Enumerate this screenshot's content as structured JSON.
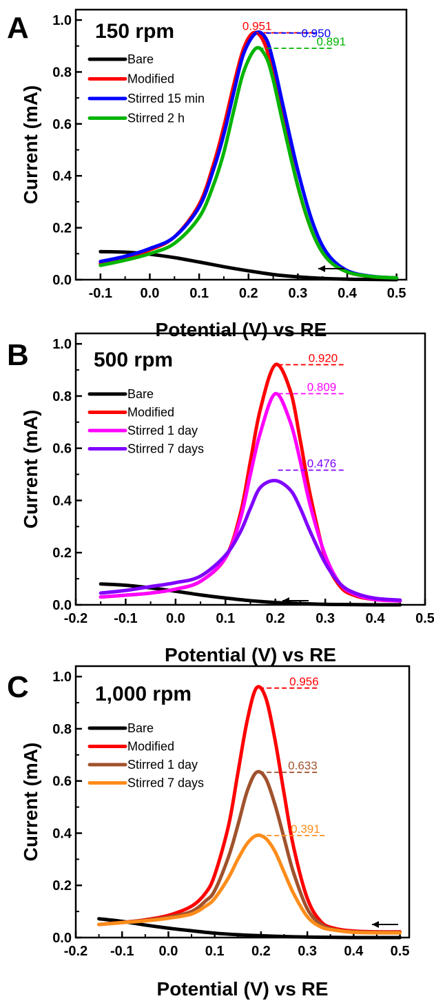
{
  "chart_data": [
    {
      "type": "line",
      "panel_label": "A",
      "title": "150 rpm",
      "xlabel": "Potential (V) vs RE",
      "ylabel": "Current (mA)",
      "xlim": [
        -0.15,
        0.52
      ],
      "ylim": [
        0,
        1.04
      ],
      "xticks": [
        -0.1,
        0.0,
        0.1,
        0.2,
        0.3,
        0.4,
        0.5
      ],
      "xtick_labels": [
        "-0.1",
        "0.0",
        "0.1",
        "0.2",
        "0.3",
        "0.4",
        "0.5"
      ],
      "yticks": [
        0.0,
        0.2,
        0.4,
        0.6,
        0.8,
        1.0
      ],
      "ytick_labels": [
        "0.0",
        "0.2",
        "0.4",
        "0.6",
        "0.8",
        "1.0"
      ],
      "grid": false,
      "legend_position": "top-left",
      "scan_arrow": "leftward",
      "series": [
        {
          "name": "Bare",
          "color": "#000000",
          "x": [
            -0.1,
            -0.05,
            0.0,
            0.05,
            0.1,
            0.15,
            0.2,
            0.25,
            0.3,
            0.35,
            0.4,
            0.45,
            0.5
          ],
          "y": [
            0.108,
            0.106,
            0.098,
            0.085,
            0.068,
            0.05,
            0.034,
            0.02,
            0.011,
            0.005,
            0.002,
            0.001,
            0.0
          ]
        },
        {
          "name": "Modified",
          "color": "#ff0000",
          "x": [
            -0.1,
            -0.05,
            0.0,
            0.05,
            0.1,
            0.13,
            0.15,
            0.17,
            0.19,
            0.21,
            0.23,
            0.25,
            0.27,
            0.3,
            0.33,
            0.36,
            0.4,
            0.45,
            0.5
          ],
          "y": [
            0.062,
            0.085,
            0.115,
            0.165,
            0.29,
            0.45,
            0.59,
            0.75,
            0.89,
            0.951,
            0.92,
            0.8,
            0.62,
            0.36,
            0.18,
            0.08,
            0.03,
            0.012,
            0.007
          ]
        },
        {
          "name": "Stirred 15 min",
          "color": "#0000ff",
          "x": [
            -0.1,
            -0.05,
            0.0,
            0.05,
            0.1,
            0.13,
            0.15,
            0.17,
            0.19,
            0.215,
            0.235,
            0.25,
            0.27,
            0.3,
            0.33,
            0.36,
            0.4,
            0.45,
            0.5
          ],
          "y": [
            0.07,
            0.09,
            0.12,
            0.165,
            0.28,
            0.43,
            0.56,
            0.72,
            0.87,
            0.95,
            0.93,
            0.84,
            0.67,
            0.42,
            0.22,
            0.1,
            0.035,
            0.013,
            0.007
          ]
        },
        {
          "name": "Stirred 2 h",
          "color": "#00b400",
          "x": [
            -0.1,
            -0.05,
            0.0,
            0.05,
            0.1,
            0.13,
            0.15,
            0.17,
            0.19,
            0.215,
            0.235,
            0.25,
            0.27,
            0.3,
            0.33,
            0.36,
            0.4,
            0.45,
            0.5
          ],
          "y": [
            0.055,
            0.075,
            0.1,
            0.14,
            0.24,
            0.37,
            0.49,
            0.65,
            0.8,
            0.891,
            0.86,
            0.77,
            0.6,
            0.36,
            0.18,
            0.08,
            0.03,
            0.012,
            0.007
          ]
        }
      ],
      "annotations": [
        {
          "text": "0.951",
          "color": "#ff0000",
          "x": 0.21,
          "y": 0.951
        },
        {
          "text": "0.950",
          "color": "#0000ff",
          "x": 0.215,
          "y": 0.95
        },
        {
          "text": "0.891",
          "color": "#00b400",
          "x": 0.215,
          "y": 0.891
        }
      ]
    },
    {
      "type": "line",
      "panel_label": "B",
      "title": "500 rpm",
      "xlabel": "Potential (V) vs RE",
      "ylabel": "Current (mA)",
      "xlim": [
        -0.2,
        0.5
      ],
      "ylim": [
        0,
        1.04
      ],
      "xticks": [
        -0.2,
        -0.1,
        0.0,
        0.1,
        0.2,
        0.3,
        0.4,
        0.5
      ],
      "xtick_labels": [
        "-0.2",
        "-0.1",
        "0.0",
        "0.1",
        "0.2",
        "0.3",
        "0.4",
        "0.5"
      ],
      "yticks": [
        0.0,
        0.2,
        0.4,
        0.6,
        0.8,
        1.0
      ],
      "ytick_labels": [
        "0.0",
        "0.2",
        "0.4",
        "0.6",
        "0.8",
        "1.0"
      ],
      "grid": false,
      "legend_position": "top-left",
      "scan_arrow": "leftward",
      "series": [
        {
          "name": "Bare",
          "color": "#000000",
          "x": [
            -0.15,
            -0.1,
            -0.05,
            0.0,
            0.05,
            0.1,
            0.15,
            0.2,
            0.25,
            0.3,
            0.35,
            0.4,
            0.45
          ],
          "y": [
            0.08,
            0.075,
            0.065,
            0.052,
            0.038,
            0.026,
            0.016,
            0.009,
            0.005,
            0.002,
            0.001,
            0.0,
            0.0
          ]
        },
        {
          "name": "Modified",
          "color": "#ff0000",
          "x": [
            -0.15,
            -0.1,
            -0.05,
            0.0,
            0.05,
            0.1,
            0.13,
            0.15,
            0.17,
            0.2,
            0.23,
            0.25,
            0.27,
            0.3,
            0.33,
            0.36,
            0.4,
            0.45
          ],
          "y": [
            0.03,
            0.037,
            0.045,
            0.06,
            0.09,
            0.18,
            0.35,
            0.55,
            0.75,
            0.92,
            0.82,
            0.63,
            0.42,
            0.18,
            0.07,
            0.035,
            0.02,
            0.015
          ]
        },
        {
          "name": "Stirred 1 day",
          "color": "#ff00ff",
          "x": [
            -0.15,
            -0.1,
            -0.05,
            0.0,
            0.05,
            0.1,
            0.13,
            0.15,
            0.17,
            0.2,
            0.23,
            0.25,
            0.27,
            0.3,
            0.33,
            0.36,
            0.4,
            0.45
          ],
          "y": [
            0.03,
            0.037,
            0.045,
            0.06,
            0.09,
            0.18,
            0.33,
            0.5,
            0.66,
            0.809,
            0.7,
            0.55,
            0.38,
            0.19,
            0.08,
            0.04,
            0.02,
            0.015
          ]
        },
        {
          "name": "Stirred 7 days",
          "color": "#8000ff",
          "x": [
            -0.15,
            -0.1,
            -0.05,
            0.0,
            0.05,
            0.1,
            0.13,
            0.15,
            0.17,
            0.2,
            0.23,
            0.25,
            0.27,
            0.3,
            0.33,
            0.36,
            0.4,
            0.45
          ],
          "y": [
            0.045,
            0.055,
            0.07,
            0.085,
            0.11,
            0.19,
            0.28,
            0.37,
            0.45,
            0.476,
            0.44,
            0.37,
            0.28,
            0.16,
            0.08,
            0.045,
            0.025,
            0.018
          ]
        }
      ],
      "annotations": [
        {
          "text": "0.920",
          "color": "#ff0000",
          "x": 0.2,
          "y": 0.92
        },
        {
          "text": "0.809",
          "color": "#ff00ff",
          "x": 0.2,
          "y": 0.809
        },
        {
          "text": "0.476",
          "color": "#8000ff",
          "x": 0.2,
          "y": 0.516
        }
      ]
    },
    {
      "type": "line",
      "panel_label": "C",
      "title": "1,000 rpm",
      "xlabel": "Potential (V) vs RE",
      "ylabel": "Current (mA)",
      "xlim": [
        -0.2,
        0.52
      ],
      "ylim": [
        0,
        1.04
      ],
      "xticks": [
        -0.2,
        -0.1,
        0.0,
        0.1,
        0.2,
        0.3,
        0.4,
        0.5
      ],
      "xtick_labels": [
        "-0.2",
        "-0.1",
        "0.0",
        "0.1",
        "0.2",
        "0.3",
        "0.4",
        "0.5"
      ],
      "yticks": [
        0.0,
        0.2,
        0.4,
        0.6,
        0.8,
        1.0
      ],
      "ytick_labels": [
        "0.0",
        "0.2",
        "0.4",
        "0.6",
        "0.8",
        "1.0"
      ],
      "grid": false,
      "legend_position": "top-left",
      "scan_arrow": "leftward",
      "series": [
        {
          "name": "Bare",
          "color": "#000000",
          "x": [
            -0.15,
            -0.1,
            -0.05,
            0.0,
            0.05,
            0.1,
            0.15,
            0.2,
            0.25,
            0.3,
            0.35,
            0.4,
            0.45,
            0.5
          ],
          "y": [
            0.072,
            0.062,
            0.048,
            0.036,
            0.026,
            0.017,
            0.011,
            0.007,
            0.004,
            0.002,
            0.001,
            0.0,
            0.0,
            0.0
          ]
        },
        {
          "name": "Modified",
          "color": "#ff0000",
          "x": [
            -0.15,
            -0.1,
            -0.05,
            0.0,
            0.05,
            0.08,
            0.1,
            0.13,
            0.15,
            0.17,
            0.19,
            0.21,
            0.23,
            0.25,
            0.27,
            0.3,
            0.33,
            0.36,
            0.4,
            0.45,
            0.5
          ],
          "y": [
            0.05,
            0.058,
            0.068,
            0.085,
            0.12,
            0.17,
            0.24,
            0.43,
            0.63,
            0.83,
            0.956,
            0.92,
            0.76,
            0.55,
            0.35,
            0.15,
            0.06,
            0.035,
            0.025,
            0.022,
            0.022
          ]
        },
        {
          "name": "Stirred 1 day",
          "color": "#a0522d",
          "x": [
            -0.15,
            -0.1,
            -0.05,
            0.0,
            0.05,
            0.08,
            0.1,
            0.13,
            0.15,
            0.17,
            0.19,
            0.21,
            0.23,
            0.25,
            0.27,
            0.3,
            0.33,
            0.36,
            0.4,
            0.45,
            0.5
          ],
          "y": [
            0.05,
            0.058,
            0.066,
            0.078,
            0.1,
            0.14,
            0.18,
            0.31,
            0.43,
            0.56,
            0.633,
            0.61,
            0.51,
            0.38,
            0.25,
            0.11,
            0.05,
            0.03,
            0.022,
            0.02,
            0.02
          ]
        },
        {
          "name": "Stirred 7 days",
          "color": "#ff8c1a",
          "x": [
            -0.15,
            -0.1,
            -0.05,
            0.0,
            0.05,
            0.08,
            0.1,
            0.13,
            0.15,
            0.17,
            0.19,
            0.21,
            0.23,
            0.25,
            0.27,
            0.3,
            0.33,
            0.36,
            0.4,
            0.45,
            0.5
          ],
          "y": [
            0.05,
            0.057,
            0.064,
            0.074,
            0.09,
            0.12,
            0.15,
            0.23,
            0.3,
            0.36,
            0.391,
            0.38,
            0.33,
            0.25,
            0.17,
            0.08,
            0.04,
            0.028,
            0.02,
            0.018,
            0.018
          ]
        }
      ],
      "annotations": [
        {
          "text": "0.956",
          "color": "#ff0000",
          "x": 0.19,
          "y": 0.956
        },
        {
          "text": "0.633",
          "color": "#a0522d",
          "x": 0.19,
          "y": 0.633
        },
        {
          "text": "0.391",
          "color": "#ff8c1a",
          "x": 0.19,
          "y": 0.391
        }
      ]
    }
  ]
}
